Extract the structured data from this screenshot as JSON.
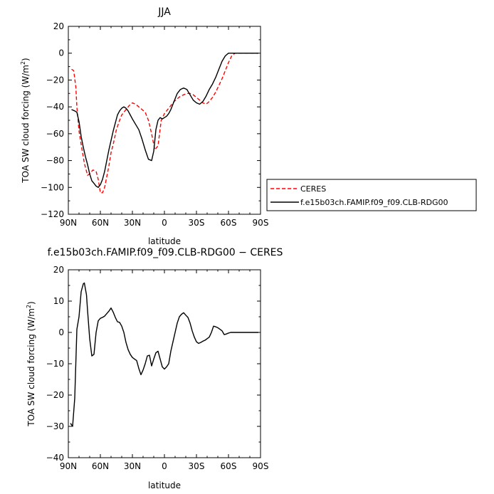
{
  "chart_data": [
    {
      "type": "line",
      "title": "JJA",
      "xlabel": "latitude",
      "ylabel_main": "TOA SW cloud forcing (W/m",
      "ylabel_sup": "2",
      "ylabel_close": ")",
      "xlim": [
        90,
        -90
      ],
      "ylim": [
        -120,
        20
      ],
      "xticks": [
        90,
        60,
        30,
        0,
        -30,
        -60,
        -90
      ],
      "xtick_labels": [
        "90N",
        "60N",
        "30N",
        "0",
        "30S",
        "60S",
        "90S"
      ],
      "yticks": [
        20,
        0,
        -20,
        -40,
        -60,
        -80,
        -100,
        -120
      ],
      "ytick_labels": [
        "20",
        "0",
        "−20",
        "−40",
        "−60",
        "−80",
        "−100",
        "−120"
      ],
      "legend_placement": "outside-right",
      "series": [
        {
          "name": "CERES",
          "color": "#ff0000",
          "dash": true,
          "x": [
            87,
            85,
            83,
            82,
            80,
            78,
            75,
            72,
            70,
            67,
            64,
            62,
            60,
            58,
            56,
            54,
            52,
            50,
            48,
            45,
            42,
            40,
            36,
            33,
            30,
            27,
            24,
            21,
            18,
            15,
            12,
            9,
            6,
            3,
            0,
            -3,
            -6,
            -9,
            -12,
            -15,
            -18,
            -21,
            -24,
            -27,
            -30,
            -33,
            -36,
            -39,
            -42,
            -45,
            -48,
            -51,
            -54,
            -57,
            -60,
            -63,
            -66,
            -70,
            -75,
            -80,
            -85,
            -88
          ],
          "y": [
            -12,
            -13,
            -25,
            -40,
            -58,
            -68,
            -82,
            -91,
            -90,
            -87,
            -88,
            -94,
            -104,
            -104,
            -100,
            -92,
            -84,
            -74,
            -68,
            -57,
            -50,
            -46,
            -42,
            -39,
            -37,
            -38,
            -40,
            -42,
            -44,
            -50,
            -60,
            -72,
            -69,
            -50,
            -45,
            -42,
            -39,
            -36,
            -34,
            -32,
            -31,
            -30,
            -30,
            -31,
            -33,
            -35,
            -37,
            -38,
            -36,
            -33,
            -29,
            -24,
            -19,
            -13,
            -7,
            -2,
            0,
            0,
            0,
            0,
            0,
            0
          ]
        },
        {
          "name": "f.e15b03ch.FAMIP.f09_f09.CLB-RDG00",
          "color": "#000000",
          "dash": false,
          "x": [
            87,
            84,
            82,
            80,
            78,
            76,
            74,
            72,
            70,
            68,
            66,
            64,
            62,
            60,
            58,
            56,
            54,
            52,
            50,
            48,
            46,
            44,
            42,
            40,
            38,
            36,
            34,
            32,
            30,
            27,
            24,
            21,
            18,
            15,
            12,
            10,
            8,
            6,
            4,
            2,
            0,
            -2,
            -4,
            -6,
            -8,
            -10,
            -12,
            -15,
            -18,
            -21,
            -24,
            -27,
            -30,
            -33,
            -36,
            -39,
            -42,
            -45,
            -48,
            -51,
            -54,
            -57,
            -60,
            -63,
            -66,
            -70,
            -75,
            -80,
            -85,
            -88
          ],
          "y": [
            -42,
            -43,
            -44,
            -51,
            -62,
            -70,
            -77,
            -83,
            -90,
            -95,
            -97,
            -99,
            -100,
            -98,
            -94,
            -88,
            -80,
            -72,
            -65,
            -58,
            -52,
            -46,
            -43,
            -41,
            -40,
            -41,
            -43,
            -46,
            -49,
            -53,
            -57,
            -64,
            -72,
            -79,
            -80,
            -73,
            -57,
            -50,
            -48,
            -49,
            -48,
            -47,
            -45,
            -42,
            -38,
            -34,
            -30,
            -27,
            -26,
            -27,
            -31,
            -35,
            -37,
            -38,
            -36,
            -32,
            -27,
            -23,
            -18,
            -12,
            -6,
            -2,
            0,
            0,
            0,
            0,
            0,
            0,
            0,
            0
          ]
        }
      ]
    },
    {
      "type": "line",
      "title": "f.e15b03ch.FAMIP.f09_f09.CLB-RDG00  −  CERES",
      "xlabel": "latitude",
      "ylabel_main": "TOA SW cloud forcing (W/m",
      "ylabel_sup": "2",
      "ylabel_close": ")",
      "xlim": [
        90,
        -90
      ],
      "ylim": [
        -40,
        20
      ],
      "xticks": [
        90,
        60,
        30,
        0,
        -30,
        -60,
        -90
      ],
      "xtick_labels": [
        "90N",
        "60N",
        "30N",
        "0",
        "30S",
        "60S",
        "90S"
      ],
      "yticks": [
        20,
        10,
        0,
        -10,
        -20,
        -30,
        -40
      ],
      "ytick_labels": [
        "20",
        "10",
        "0",
        "−10",
        "−20",
        "−30",
        "−40"
      ],
      "series": [
        {
          "color": "#000000",
          "dash": false,
          "x": [
            88,
            86,
            84,
            82,
            80,
            78,
            76,
            75,
            73,
            72,
            70,
            68,
            66,
            64,
            62,
            60,
            58,
            56,
            54,
            52,
            50,
            48,
            46,
            44,
            42,
            40,
            38,
            36,
            34,
            32,
            30,
            28,
            26,
            24,
            22,
            20,
            18,
            16,
            14,
            12,
            10,
            8,
            6,
            4,
            2,
            0,
            -2,
            -4,
            -6,
            -8,
            -10,
            -12,
            -14,
            -16,
            -18,
            -20,
            -22,
            -24,
            -26,
            -28,
            -30,
            -32,
            -34,
            -36,
            -38,
            -40,
            -42,
            -44,
            -46,
            -48,
            -50,
            -52,
            -54,
            -56,
            -58,
            -60,
            -62,
            -64,
            -66,
            -68,
            -70,
            -75,
            -80,
            -85,
            -88
          ],
          "y": [
            -29,
            -30,
            -21,
            1,
            5,
            13,
            15.5,
            15.8,
            12,
            7,
            -2,
            -7.5,
            -7,
            0,
            3.7,
            4.5,
            4.8,
            5.2,
            6,
            6.8,
            7.8,
            6.5,
            4.8,
            3.4,
            3.2,
            2,
            0,
            -3.2,
            -5.5,
            -7,
            -8,
            -8.5,
            -9,
            -11.5,
            -13.5,
            -12,
            -10,
            -7.5,
            -7.3,
            -10.7,
            -8.5,
            -6.5,
            -6,
            -8.5,
            -11,
            -11.7,
            -11,
            -10,
            -6,
            -3,
            0,
            3,
            5,
            5.8,
            6.3,
            5.5,
            4.8,
            3,
            0.5,
            -1.5,
            -3,
            -3.5,
            -3.2,
            -2.8,
            -2.5,
            -2,
            -1.5,
            0,
            2,
            1.8,
            1.5,
            1,
            0.5,
            -0.7,
            -0.5,
            -0.2,
            0,
            0,
            0,
            0,
            0,
            0,
            0,
            0,
            0
          ]
        }
      ]
    }
  ]
}
